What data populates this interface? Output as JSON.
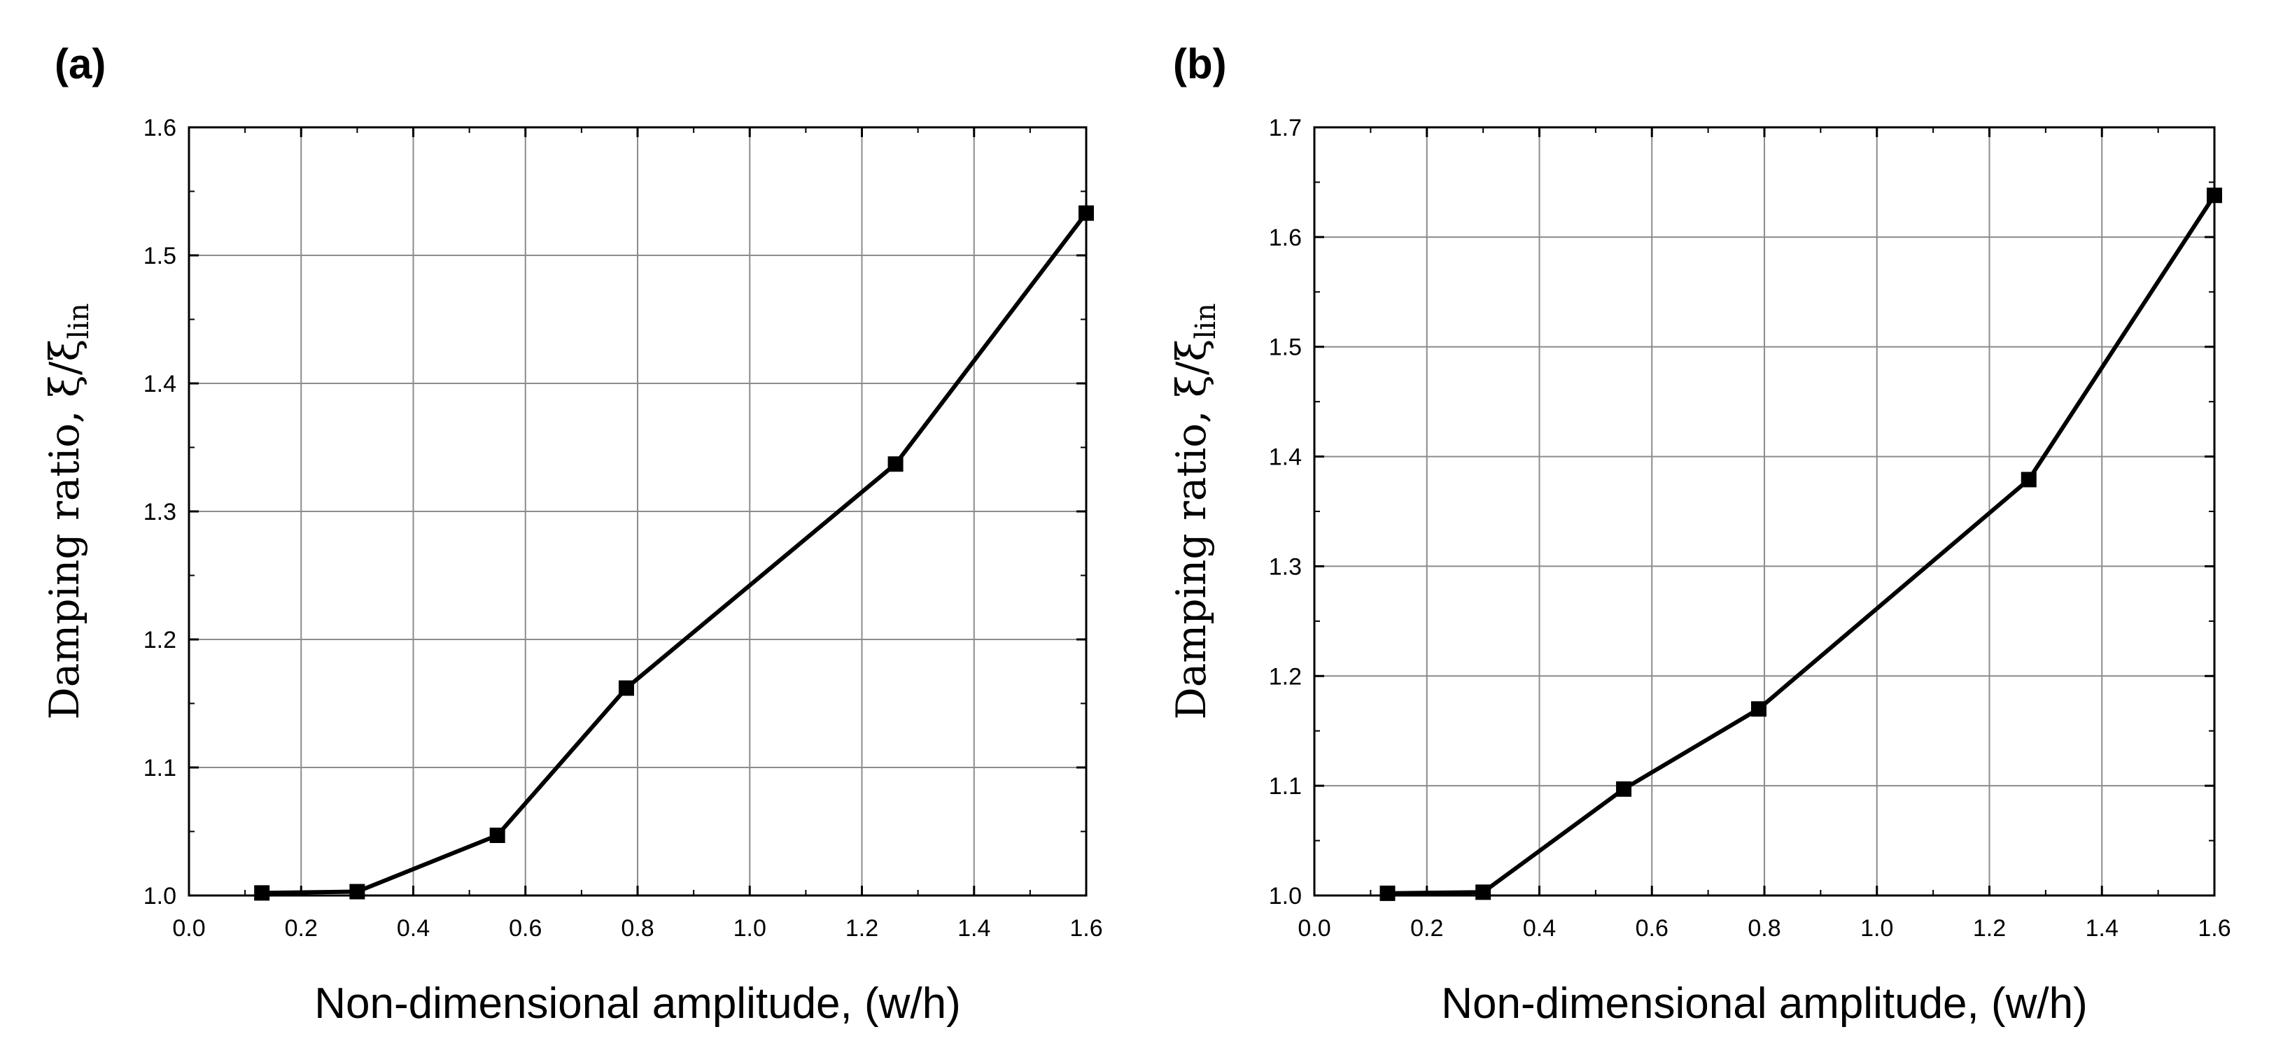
{
  "chart_data": [
    {
      "type": "line",
      "panel_label": "(a)",
      "xlabel": "Non-dimensional amplitude, (w/h)",
      "ylabel": "Damping ratio, ξ/ξ",
      "ylabel_sub": "lin",
      "xlim": [
        0.0,
        1.6
      ],
      "ylim": [
        1.0,
        1.6
      ],
      "xticks": [
        0.0,
        0.2,
        0.4,
        0.6,
        0.8,
        1.0,
        1.2,
        1.4,
        1.6
      ],
      "xtick_labels": [
        "0.0",
        "0.2",
        "0.4",
        "0.6",
        "0.8",
        "1.0",
        "1.2",
        "1.4",
        "1.6"
      ],
      "yticks": [
        1.0,
        1.1,
        1.2,
        1.3,
        1.4,
        1.5,
        1.6
      ],
      "ytick_labels": [
        "1.0",
        "1.1",
        "1.2",
        "1.3",
        "1.4",
        "1.5",
        "1.6"
      ],
      "grid": true,
      "series": [
        {
          "name": "damping ratio",
          "x": [
            0.13,
            0.3,
            0.55,
            0.78,
            1.26,
            1.6
          ],
          "y": [
            1.002,
            1.003,
            1.047,
            1.162,
            1.337,
            1.533
          ]
        }
      ]
    },
    {
      "type": "line",
      "panel_label": "(b)",
      "xlabel": "Non-dimensional amplitude, (w/h)",
      "ylabel": "Damping ratio, ξ/ξ",
      "ylabel_sub": "lin",
      "xlim": [
        0.0,
        1.6
      ],
      "ylim": [
        1.0,
        1.7
      ],
      "xticks": [
        0.0,
        0.2,
        0.4,
        0.6,
        0.8,
        1.0,
        1.2,
        1.4,
        1.6
      ],
      "xtick_labels": [
        "0.0",
        "0.2",
        "0.4",
        "0.6",
        "0.8",
        "1.0",
        "1.2",
        "1.4",
        "1.6"
      ],
      "yticks": [
        1.0,
        1.1,
        1.2,
        1.3,
        1.4,
        1.5,
        1.6,
        1.7
      ],
      "ytick_labels": [
        "1.0",
        "1.1",
        "1.2",
        "1.3",
        "1.4",
        "1.5",
        "1.6",
        "1.7"
      ],
      "grid": true,
      "series": [
        {
          "name": "damping ratio",
          "x": [
            0.13,
            0.3,
            0.55,
            0.79,
            1.27,
            1.6
          ],
          "y": [
            1.002,
            1.003,
            1.097,
            1.17,
            1.379,
            1.638
          ]
        }
      ]
    }
  ]
}
